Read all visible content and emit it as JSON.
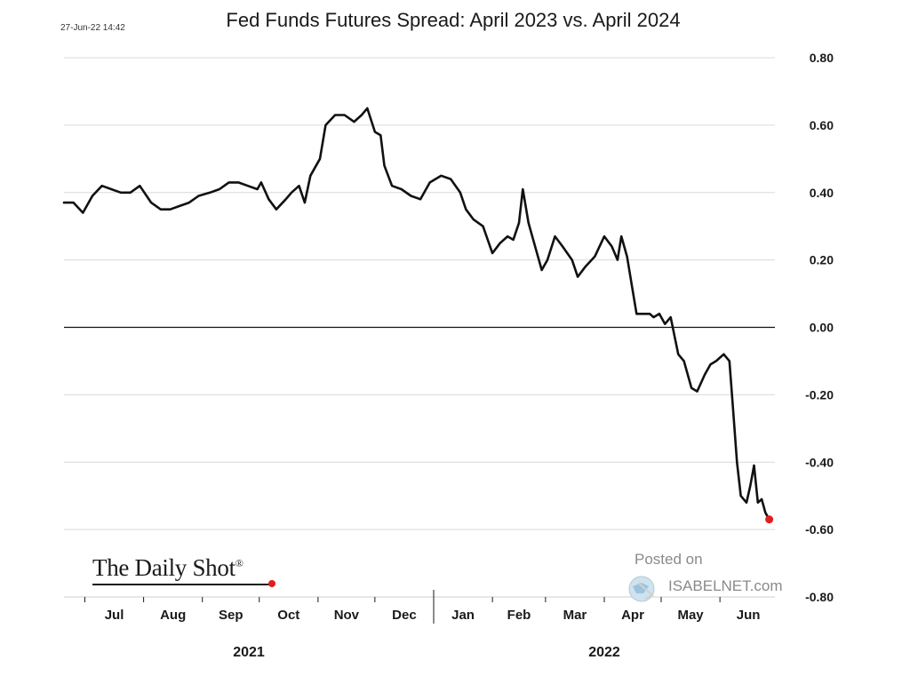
{
  "timestamp": "27-Jun-22 14:42",
  "watermark": {
    "posted_on": "Posted on",
    "site": "ISABELNET.com"
  },
  "logo": {
    "text": "The Daily Shot",
    "mark": "®"
  },
  "colors": {
    "line": "#111111",
    "grid": "#d9d9d9",
    "zero_line": "#111111",
    "last_point": "#e0201c"
  },
  "chart_data": {
    "type": "line",
    "title": "Fed Funds Futures Spread: April 2023 vs. April 2024",
    "ylim": [
      -0.8,
      0.8
    ],
    "y_ticks": [
      "0.80",
      "0.60",
      "0.40",
      "0.20",
      "0.00",
      "-0.20",
      "-0.40",
      "-0.60",
      "-0.80"
    ],
    "x_range": [
      "2021-06-20",
      "2022-06-30"
    ],
    "month_labels": [
      "Jul",
      "Aug",
      "Sep",
      "Oct",
      "Nov",
      "Dec",
      "Jan",
      "Feb",
      "Mar",
      "Apr",
      "May",
      "Jun"
    ],
    "year_labels": [
      "2021",
      "2022"
    ],
    "grid": true,
    "series": [
      {
        "x": [
          "2021-06-20",
          "2021-06-25",
          "2021-06-30",
          "2021-07-05",
          "2021-07-10",
          "2021-07-15",
          "2021-07-20",
          "2021-07-25",
          "2021-07-30",
          "2021-08-05",
          "2021-08-10",
          "2021-08-15",
          "2021-08-20",
          "2021-08-25",
          "2021-08-30",
          "2021-09-05",
          "2021-09-10",
          "2021-09-15",
          "2021-09-20",
          "2021-09-25",
          "2021-09-30",
          "2021-10-02",
          "2021-10-06",
          "2021-10-10",
          "2021-10-15",
          "2021-10-18",
          "2021-10-22",
          "2021-10-25",
          "2021-10-28",
          "2021-11-02",
          "2021-11-05",
          "2021-11-10",
          "2021-11-15",
          "2021-11-20",
          "2021-11-24",
          "2021-11-27",
          "2021-12-01",
          "2021-12-04",
          "2021-12-06",
          "2021-12-10",
          "2021-12-15",
          "2021-12-20",
          "2021-12-25",
          "2021-12-30",
          "2022-01-05",
          "2022-01-10",
          "2022-01-15",
          "2022-01-18",
          "2022-01-22",
          "2022-01-27",
          "2022-02-01",
          "2022-02-05",
          "2022-02-09",
          "2022-02-12",
          "2022-02-15",
          "2022-02-17",
          "2022-02-20",
          "2022-02-24",
          "2022-02-27",
          "2022-03-02",
          "2022-03-06",
          "2022-03-10",
          "2022-03-15",
          "2022-03-18",
          "2022-03-22",
          "2022-03-27",
          "2022-04-01",
          "2022-04-05",
          "2022-04-08",
          "2022-04-10",
          "2022-04-13",
          "2022-04-18",
          "2022-04-22",
          "2022-04-25",
          "2022-04-27",
          "2022-04-30",
          "2022-05-03",
          "2022-05-06",
          "2022-05-10",
          "2022-05-13",
          "2022-05-17",
          "2022-05-20",
          "2022-05-24",
          "2022-05-27",
          "2022-05-30",
          "2022-06-01",
          "2022-06-03",
          "2022-06-06",
          "2022-06-08",
          "2022-06-10",
          "2022-06-12",
          "2022-06-15",
          "2022-06-17",
          "2022-06-19",
          "2022-06-21",
          "2022-06-23",
          "2022-06-25",
          "2022-06-27"
        ],
        "y": [
          0.37,
          0.37,
          0.34,
          0.39,
          0.42,
          0.41,
          0.4,
          0.4,
          0.42,
          0.37,
          0.35,
          0.35,
          0.36,
          0.37,
          0.39,
          0.4,
          0.41,
          0.43,
          0.43,
          0.42,
          0.41,
          0.43,
          0.38,
          0.35,
          0.38,
          0.4,
          0.42,
          0.37,
          0.45,
          0.5,
          0.6,
          0.63,
          0.63,
          0.61,
          0.63,
          0.65,
          0.58,
          0.57,
          0.48,
          0.42,
          0.41,
          0.39,
          0.38,
          0.43,
          0.45,
          0.44,
          0.4,
          0.35,
          0.32,
          0.3,
          0.22,
          0.25,
          0.27,
          0.26,
          0.31,
          0.41,
          0.31,
          0.23,
          0.17,
          0.2,
          0.27,
          0.24,
          0.2,
          0.15,
          0.18,
          0.21,
          0.27,
          0.24,
          0.2,
          0.27,
          0.21,
          0.04,
          0.04,
          0.04,
          0.03,
          0.04,
          0.01,
          0.03,
          -0.08,
          -0.1,
          -0.18,
          -0.19,
          -0.14,
          -0.11,
          -0.1,
          -0.09,
          -0.08,
          -0.1,
          -0.25,
          -0.4,
          -0.5,
          -0.52,
          -0.47,
          -0.41,
          -0.52,
          -0.51,
          -0.55,
          -0.57
        ]
      }
    ],
    "last_point": {
      "x": "2022-06-27",
      "y": -0.57
    }
  }
}
